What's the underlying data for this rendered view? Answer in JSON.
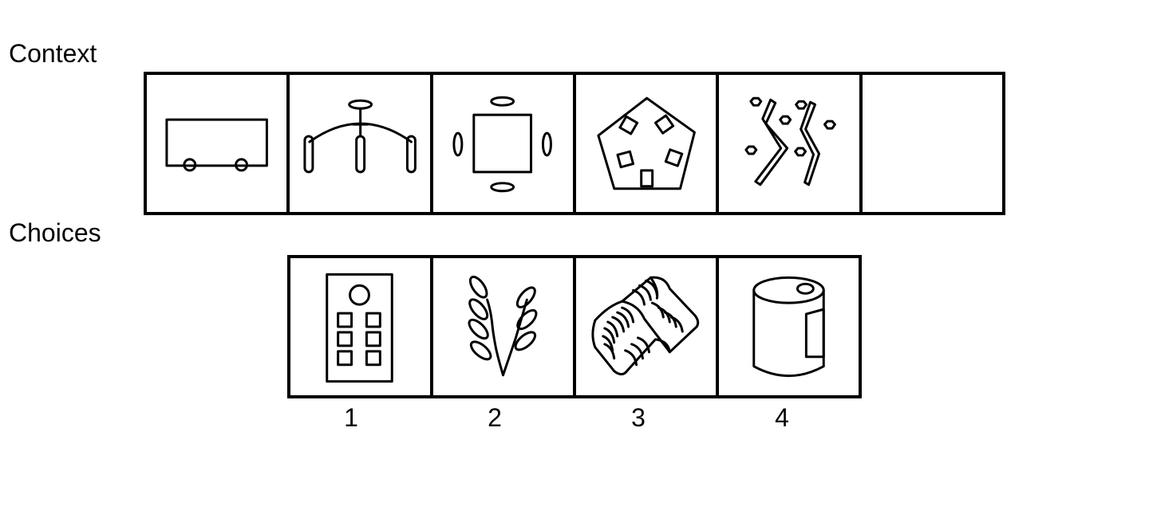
{
  "labels": {
    "context": "Context",
    "choices": "Choices"
  },
  "context_panels": [
    {
      "icon": "bus-icon"
    },
    {
      "icon": "chandelier-icon"
    },
    {
      "icon": "square-table-icon"
    },
    {
      "icon": "pentagon-table-icon"
    },
    {
      "icon": "zigzag-flowers-icon"
    },
    {
      "icon": "empty-panel"
    }
  ],
  "choices": [
    {
      "number": "1",
      "icon": "remote-control-icon"
    },
    {
      "number": "2",
      "icon": "branch-icon"
    },
    {
      "number": "3",
      "icon": "roof-tiles-icon"
    },
    {
      "number": "4",
      "icon": "drum-icon"
    }
  ]
}
